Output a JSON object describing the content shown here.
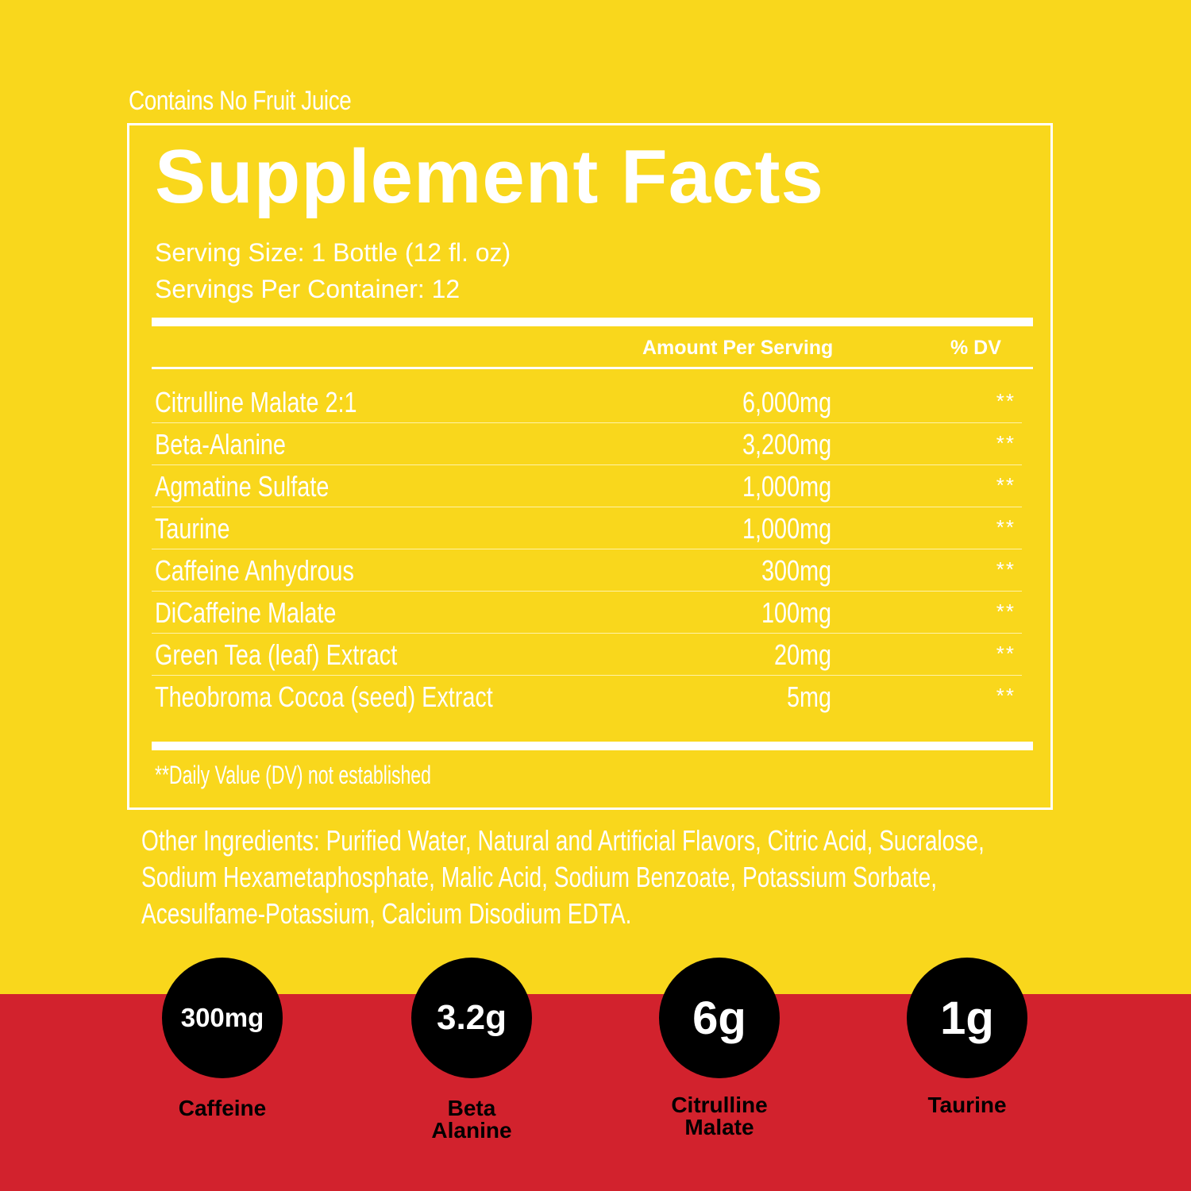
{
  "top_note": "Contains No Fruit Juice",
  "facts": {
    "title": "Supplement Facts",
    "serving_size": "Serving Size: 1 Bottle (12 fl. oz)",
    "servings_per_container": "Servings Per Container: 12",
    "col_amount": "Amount Per Serving",
    "col_dv": "% DV",
    "rows": [
      {
        "name": "Citrulline Malate 2:1",
        "amount": "6,000mg",
        "dv": "**"
      },
      {
        "name": "Beta-Alanine",
        "amount": "3,200mg",
        "dv": "**"
      },
      {
        "name": "Agmatine Sulfate",
        "amount": "1,000mg",
        "dv": "**"
      },
      {
        "name": "Taurine",
        "amount": "1,000mg",
        "dv": "**"
      },
      {
        "name": "Caffeine Anhydrous",
        "amount": "300mg",
        "dv": "**"
      },
      {
        "name": "DiCaffeine Malate",
        "amount": "100mg",
        "dv": "**"
      },
      {
        "name": "Green Tea (leaf) Extract",
        "amount": "20mg",
        "dv": "**"
      },
      {
        "name": "Theobroma Cocoa (seed) Extract",
        "amount": "5mg",
        "dv": "**"
      }
    ],
    "footnote": "**Daily Value (DV) not established"
  },
  "other_ingredients": {
    "line1": "Other Ingredients: Purified Water, Natural and Artificial Flavors, Citric Acid, Sucralose,",
    "line2": "Sodium Hexametaphosphate, Malic Acid, Sodium Benzoate, Potassium Sorbate,",
    "line3": "Acesulfame-Potassium, Calcium Disodium EDTA."
  },
  "badges": [
    {
      "value": "300mg",
      "label_line1": "Caffeine",
      "label_line2": ""
    },
    {
      "value": "3.2g",
      "label_line1": "Beta",
      "label_line2": "Alanine"
    },
    {
      "value": "6g",
      "label_line1": "Citrulline",
      "label_line2": "Malate"
    },
    {
      "value": "1g",
      "label_line1": "Taurine",
      "label_line2": ""
    }
  ],
  "colors": {
    "background_yellow": "#F9D71C",
    "band_red": "#D2222D",
    "badge_black": "#000000",
    "text_white": "#FFFFFF"
  }
}
